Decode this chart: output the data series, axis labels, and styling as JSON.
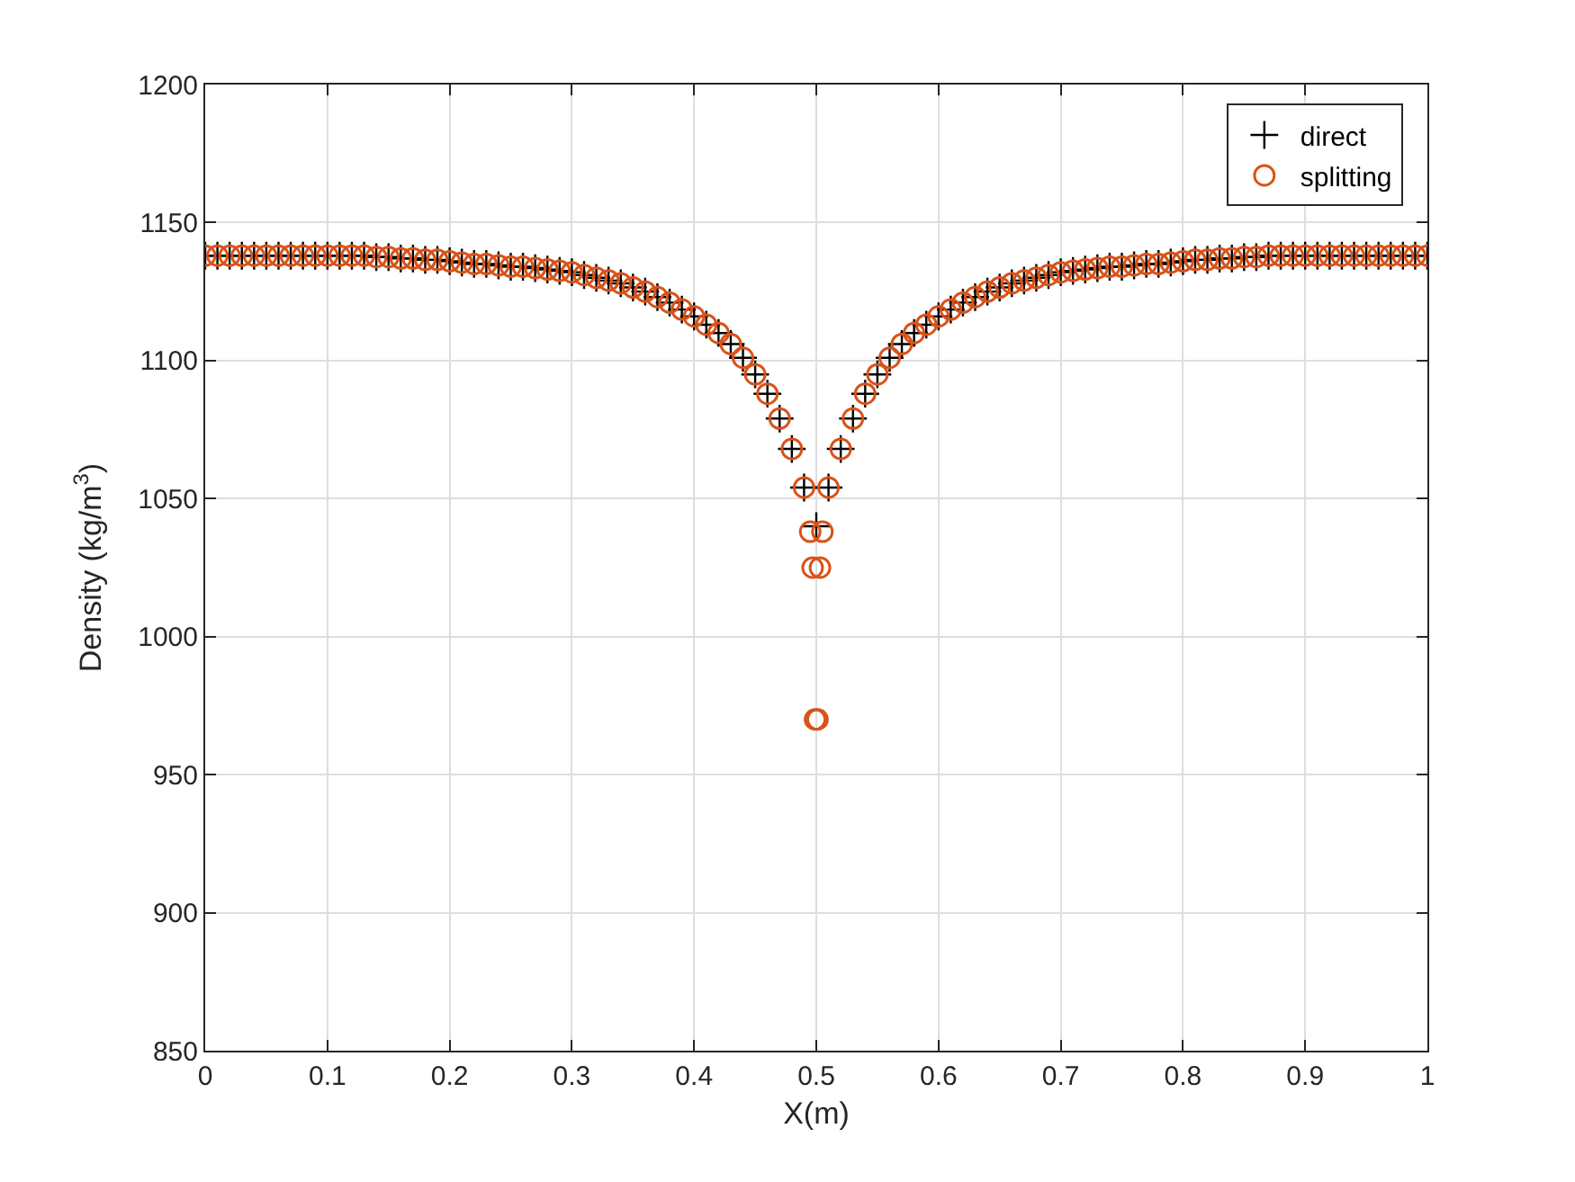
{
  "chart_data": {
    "type": "scatter",
    "xlabel": "X(m)",
    "ylabel": "Density (kg/m$^{3}$)",
    "xlim": [
      0,
      1
    ],
    "xticks": [
      0,
      0.1,
      0.2,
      0.3,
      0.4,
      0.5,
      0.6,
      0.7,
      0.8,
      0.9,
      1
    ],
    "ylim": [
      850,
      1200
    ],
    "yticks": [
      850,
      900,
      950,
      1000,
      1050,
      1100,
      1150,
      1200
    ],
    "grid": true,
    "legend": "top right",
    "x": [
      0,
      0.01,
      0.02,
      0.03,
      0.04,
      0.05,
      0.06,
      0.07,
      0.08,
      0.09,
      0.1,
      0.11,
      0.12,
      0.13,
      0.14,
      0.15,
      0.16,
      0.17,
      0.18,
      0.19,
      0.2,
      0.21,
      0.22,
      0.23,
      0.24,
      0.25,
      0.26,
      0.27,
      0.28,
      0.29,
      0.3,
      0.31,
      0.32,
      0.33,
      0.34,
      0.35,
      0.36,
      0.37,
      0.38,
      0.39,
      0.4,
      0.41,
      0.42,
      0.43,
      0.44,
      0.45,
      0.46,
      0.47,
      0.48,
      0.49,
      0.5,
      0.51,
      0.52,
      0.53,
      0.54,
      0.55,
      0.56,
      0.57,
      0.58,
      0.59,
      0.6,
      0.61,
      0.62,
      0.63,
      0.64,
      0.65,
      0.66,
      0.67,
      0.68,
      0.69,
      0.7,
      0.71,
      0.72,
      0.73,
      0.74,
      0.75,
      0.76,
      0.77,
      0.78,
      0.79,
      0.8,
      0.81,
      0.82,
      0.83,
      0.84,
      0.85,
      0.86,
      0.87,
      0.88,
      0.89,
      0.9,
      0.91,
      0.92,
      0.93,
      0.94,
      0.95,
      0.96,
      0.97,
      0.98,
      0.99,
      1
    ],
    "series": [
      {
        "name": "direct",
        "color": "#000000",
        "marker": "cross",
        "values": [
          1138,
          1138,
          1138,
          1138,
          1138,
          1138,
          1138,
          1138,
          1138,
          1138,
          1138,
          1138,
          1138,
          1138,
          1137.5,
          1137.5,
          1137,
          1137,
          1136.5,
          1136.5,
          1136,
          1135.5,
          1135,
          1135,
          1134.5,
          1134,
          1134,
          1133.5,
          1133,
          1132.5,
          1132,
          1131,
          1130,
          1129,
          1128,
          1126.5,
          1125,
          1123,
          1121,
          1118.5,
          1116,
          1113,
          1110,
          1106,
          1101,
          1095,
          1088,
          1079,
          1068,
          1054,
          1040,
          1054,
          1068,
          1079,
          1088,
          1095,
          1101,
          1106,
          1110,
          1113,
          1116,
          1118.5,
          1121,
          1123,
          1125,
          1126.5,
          1128,
          1129,
          1130,
          1131,
          1132,
          1132.5,
          1133,
          1133.5,
          1134,
          1134,
          1134.5,
          1135,
          1135,
          1135.5,
          1136,
          1136.5,
          1136.5,
          1137,
          1137,
          1137.5,
          1137.5,
          1138,
          1138,
          1138,
          1138,
          1138,
          1138,
          1138,
          1138,
          1138,
          1138,
          1138,
          1138,
          1138,
          1138
        ]
      },
      {
        "name": "splitting",
        "color": "#d95319",
        "marker": "circle",
        "x": [
          0,
          0.01,
          0.02,
          0.03,
          0.04,
          0.05,
          0.06,
          0.07,
          0.08,
          0.09,
          0.1,
          0.11,
          0.12,
          0.13,
          0.14,
          0.15,
          0.16,
          0.17,
          0.18,
          0.19,
          0.2,
          0.21,
          0.22,
          0.23,
          0.24,
          0.25,
          0.26,
          0.27,
          0.28,
          0.29,
          0.3,
          0.31,
          0.32,
          0.33,
          0.34,
          0.35,
          0.36,
          0.37,
          0.38,
          0.39,
          0.4,
          0.41,
          0.42,
          0.43,
          0.44,
          0.45,
          0.46,
          0.47,
          0.48,
          0.49,
          0.495,
          0.497,
          0.499,
          0.501,
          0.503,
          0.505,
          0.51,
          0.52,
          0.53,
          0.54,
          0.55,
          0.56,
          0.57,
          0.58,
          0.59,
          0.6,
          0.61,
          0.62,
          0.63,
          0.64,
          0.65,
          0.66,
          0.67,
          0.68,
          0.69,
          0.7,
          0.71,
          0.72,
          0.73,
          0.74,
          0.75,
          0.76,
          0.77,
          0.78,
          0.79,
          0.8,
          0.81,
          0.82,
          0.83,
          0.84,
          0.85,
          0.86,
          0.87,
          0.88,
          0.89,
          0.9,
          0.91,
          0.92,
          0.93,
          0.94,
          0.95,
          0.96,
          0.97,
          0.98,
          0.99,
          1
        ],
        "values": [
          1138,
          1138,
          1138,
          1138,
          1138,
          1138,
          1138,
          1138,
          1138,
          1138,
          1138,
          1138,
          1138,
          1138,
          1137.5,
          1137.5,
          1137,
          1137,
          1136.5,
          1136.5,
          1136,
          1135.5,
          1135,
          1135,
          1134.5,
          1134,
          1134,
          1133.5,
          1133,
          1132.5,
          1132,
          1131,
          1130,
          1129,
          1128,
          1126.5,
          1125,
          1123,
          1121,
          1118.5,
          1116,
          1113,
          1110,
          1106,
          1101,
          1095,
          1088,
          1079,
          1068,
          1054,
          1038,
          1025,
          970,
          970,
          1025,
          1038,
          1054,
          1068,
          1079,
          1088,
          1095,
          1101,
          1106,
          1110,
          1113,
          1116,
          1118.5,
          1121,
          1123,
          1125,
          1126.5,
          1128,
          1129,
          1130,
          1131,
          1132,
          1132.5,
          1133,
          1133.5,
          1134,
          1134,
          1134.5,
          1135,
          1135,
          1135.5,
          1136,
          1136.5,
          1136.5,
          1137,
          1137,
          1137.5,
          1137.5,
          1138,
          1138,
          1138,
          1138,
          1138,
          1138,
          1138,
          1138,
          1138,
          1138,
          1138,
          1138,
          1138,
          1138
        ]
      }
    ]
  }
}
